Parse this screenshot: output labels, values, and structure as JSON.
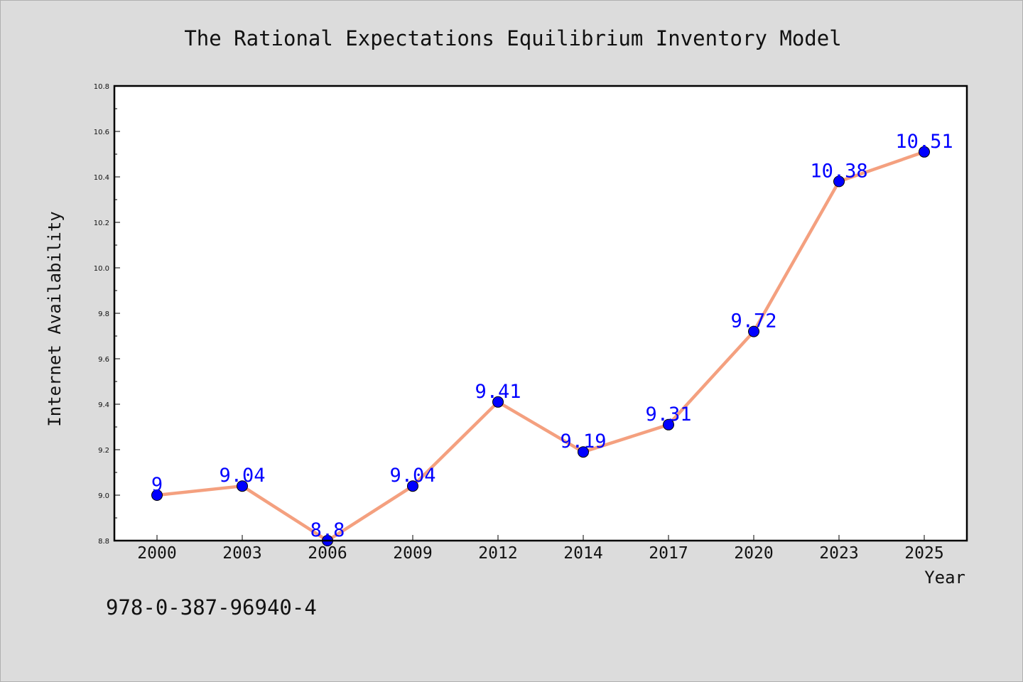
{
  "chart_data": {
    "type": "line",
    "title": "The Rational Expectations Equilibrium Inventory Model",
    "xlabel": "Year",
    "ylabel": "Internet Availability",
    "categories": [
      "2000",
      "2003",
      "2006",
      "2009",
      "2012",
      "2014",
      "2017",
      "2020",
      "2023",
      "2025"
    ],
    "series": [
      {
        "values": [
          9.0,
          9.04,
          8.8,
          9.04,
          9.41,
          9.19,
          9.31,
          9.72,
          10.38,
          10.51
        ],
        "labels": [
          "9",
          "9.04",
          "8.8",
          "9.04",
          "9.41",
          "9.19",
          "9.31",
          "9.72",
          "10.38",
          "10.51"
        ]
      }
    ],
    "ylim": [
      8.8,
      10.8
    ],
    "yticks": [
      "8.8",
      "9.0",
      "9.2",
      "9.4",
      "9.6",
      "9.8",
      "10.0",
      "10.2",
      "10.4",
      "10.6",
      "10.8"
    ],
    "grid": false,
    "legend": "none",
    "colors": {
      "line": "#f4a07f",
      "marker": "#0000ff",
      "data_label": "#0000ff",
      "plot_bg": "#ffffff",
      "figure_bg": "#dcdcdc"
    }
  },
  "footer": {
    "code": "978-0-387-96940-4"
  }
}
